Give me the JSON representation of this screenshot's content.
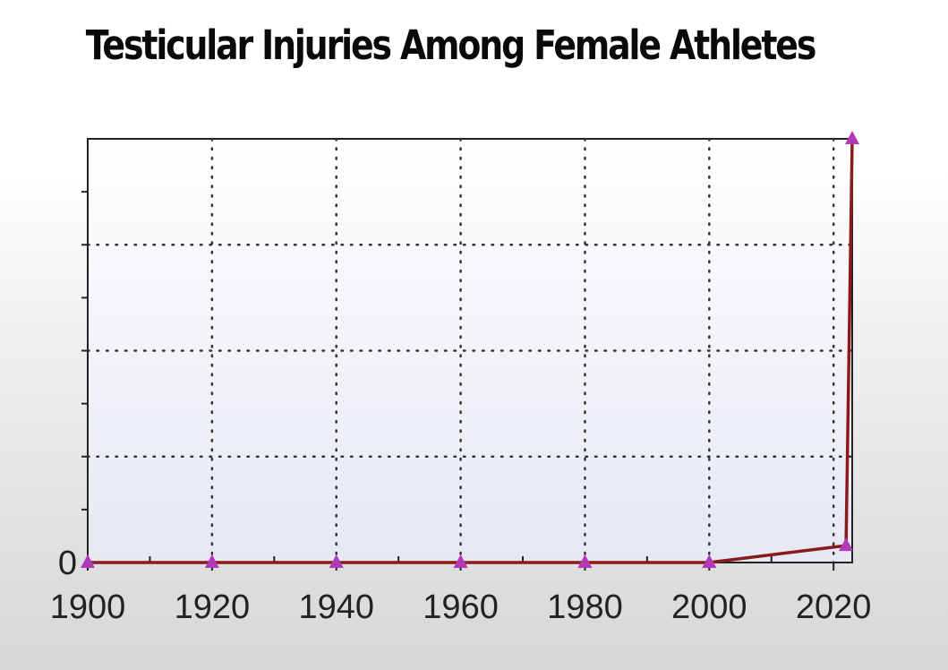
{
  "chart_data": {
    "type": "line",
    "title": "Testicular Injuries Among Female Athletes",
    "xlabel": "",
    "ylabel": "",
    "x_ticks": [
      1900,
      1920,
      1940,
      1960,
      1980,
      2000,
      2020
    ],
    "y_ticks": [
      0
    ],
    "xlim": [
      1900,
      2023
    ],
    "ylim": [
      0,
      100
    ],
    "grid": true,
    "legend": "none",
    "series": [
      {
        "x": [
          1900,
          1920,
          1940,
          1960,
          1980,
          2000,
          2022,
          2023
        ],
        "y": [
          0,
          0,
          0,
          0,
          0,
          0,
          4,
          100
        ],
        "line_color": "#8b1a1a",
        "marker": "triangle",
        "marker_color": "#b23ab8"
      }
    ],
    "plot_background": "#f0f2fa",
    "tick_labels": {
      "x": [
        "1900",
        "1920",
        "1940",
        "1960",
        "1980",
        "2000",
        "2020"
      ],
      "y": [
        "0"
      ]
    }
  }
}
